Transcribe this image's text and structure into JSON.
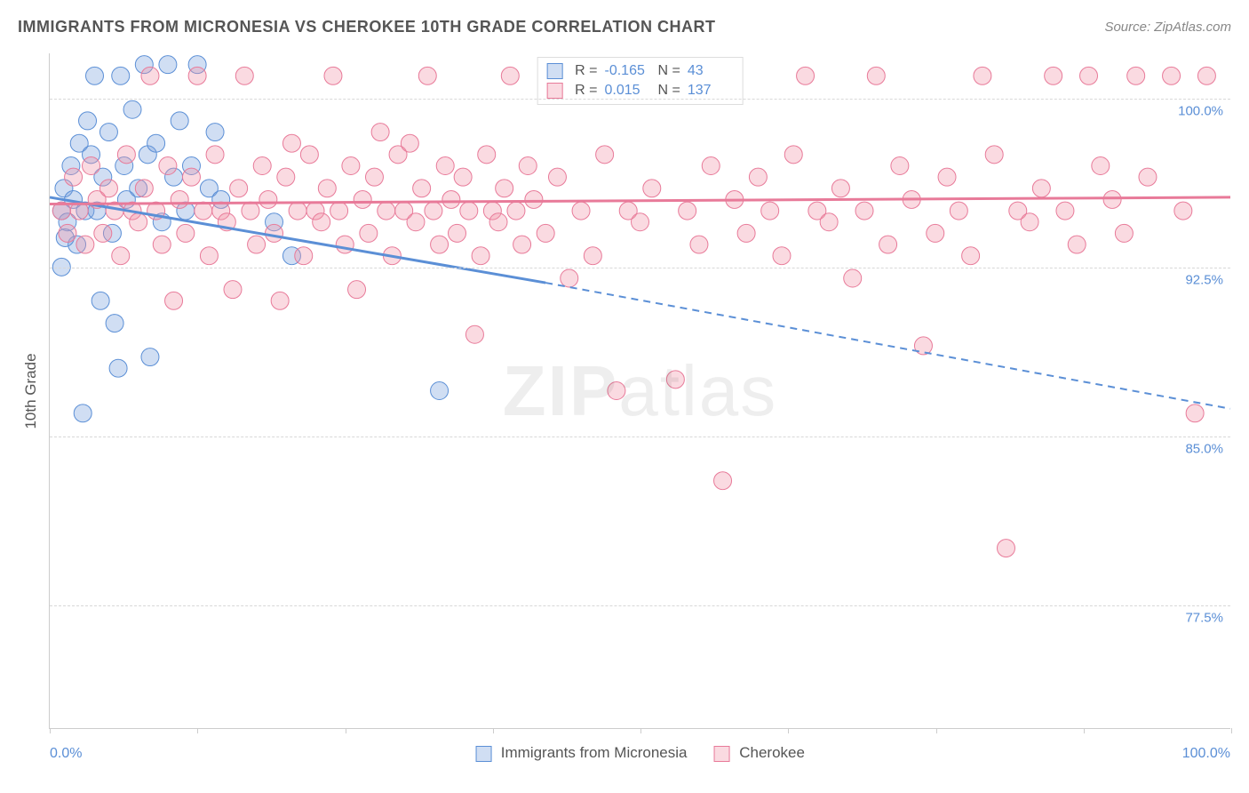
{
  "title": "IMMIGRANTS FROM MICRONESIA VS CHEROKEE 10TH GRADE CORRELATION CHART",
  "source": "Source: ZipAtlas.com",
  "y_axis_title": "10th Grade",
  "x_axis": {
    "min_label": "0.0%",
    "max_label": "100.0%",
    "min": 0,
    "max": 100,
    "tick_positions": [
      0,
      12.5,
      25,
      37.5,
      50,
      62.5,
      75,
      87.5,
      100
    ]
  },
  "y_axis": {
    "min": 72,
    "max": 102,
    "ticks": [
      {
        "value": 100.0,
        "label": "100.0%"
      },
      {
        "value": 92.5,
        "label": "92.5%"
      },
      {
        "value": 85.0,
        "label": "85.0%"
      },
      {
        "value": 77.5,
        "label": "77.5%"
      }
    ]
  },
  "watermark": {
    "bold": "ZIP",
    "light": "atlas"
  },
  "series": [
    {
      "name": "Immigrants from Micronesia",
      "color_fill": "rgba(120,160,220,0.35)",
      "color_stroke": "#5b8fd6",
      "marker_radius": 10,
      "R": "-0.165",
      "N": "43",
      "trend": {
        "solid_from": [
          0,
          95.6
        ],
        "solid_to": [
          42,
          91.8
        ],
        "dash_to": [
          100,
          86.2
        ],
        "stroke_width": 3
      },
      "points": [
        [
          1.0,
          95.0
        ],
        [
          1.2,
          96.0
        ],
        [
          1.5,
          94.5
        ],
        [
          1.8,
          97.0
        ],
        [
          2.0,
          95.5
        ],
        [
          2.3,
          93.5
        ],
        [
          2.5,
          98.0
        ],
        [
          3.0,
          95.0
        ],
        [
          3.2,
          99.0
        ],
        [
          3.5,
          97.5
        ],
        [
          3.8,
          101.0
        ],
        [
          4.0,
          95.0
        ],
        [
          4.3,
          91.0
        ],
        [
          4.5,
          96.5
        ],
        [
          5.0,
          98.5
        ],
        [
          5.3,
          94.0
        ],
        [
          5.5,
          90.0
        ],
        [
          6.0,
          101.0
        ],
        [
          6.3,
          97.0
        ],
        [
          6.5,
          95.5
        ],
        [
          7.0,
          99.5
        ],
        [
          7.5,
          96.0
        ],
        [
          8.0,
          101.5
        ],
        [
          8.3,
          97.5
        ],
        [
          8.5,
          88.5
        ],
        [
          9.0,
          98.0
        ],
        [
          9.5,
          94.5
        ],
        [
          10.0,
          101.5
        ],
        [
          10.5,
          96.5
        ],
        [
          11.0,
          99.0
        ],
        [
          11.5,
          95.0
        ],
        [
          12.0,
          97.0
        ],
        [
          12.5,
          101.5
        ],
        [
          13.5,
          96.0
        ],
        [
          14.0,
          98.5
        ],
        [
          14.5,
          95.5
        ],
        [
          2.8,
          86.0
        ],
        [
          5.8,
          88.0
        ],
        [
          19.0,
          94.5
        ],
        [
          20.5,
          93.0
        ],
        [
          33.0,
          87.0
        ],
        [
          1.0,
          92.5
        ],
        [
          1.3,
          93.8
        ]
      ]
    },
    {
      "name": "Cherokee",
      "color_fill": "rgba(240,150,170,0.35)",
      "color_stroke": "#e87a99",
      "marker_radius": 10,
      "R": "0.015",
      "N": "137",
      "trend": {
        "solid_from": [
          0,
          95.3
        ],
        "solid_to": [
          100,
          95.6
        ],
        "dash_to": null,
        "stroke_width": 3
      },
      "points": [
        [
          1.0,
          95.0
        ],
        [
          1.5,
          94.0
        ],
        [
          2.0,
          96.5
        ],
        [
          2.5,
          95.0
        ],
        [
          3.0,
          93.5
        ],
        [
          3.5,
          97.0
        ],
        [
          4.0,
          95.5
        ],
        [
          4.5,
          94.0
        ],
        [
          5.0,
          96.0
        ],
        [
          5.5,
          95.0
        ],
        [
          6.0,
          93.0
        ],
        [
          6.5,
          97.5
        ],
        [
          7.0,
          95.0
        ],
        [
          7.5,
          94.5
        ],
        [
          8.0,
          96.0
        ],
        [
          8.5,
          101.0
        ],
        [
          9.0,
          95.0
        ],
        [
          9.5,
          93.5
        ],
        [
          10.0,
          97.0
        ],
        [
          10.5,
          91.0
        ],
        [
          11.0,
          95.5
        ],
        [
          11.5,
          94.0
        ],
        [
          12.0,
          96.5
        ],
        [
          12.5,
          101.0
        ],
        [
          13.0,
          95.0
        ],
        [
          13.5,
          93.0
        ],
        [
          14.0,
          97.5
        ],
        [
          14.5,
          95.0
        ],
        [
          15.0,
          94.5
        ],
        [
          15.5,
          91.5
        ],
        [
          16.0,
          96.0
        ],
        [
          16.5,
          101.0
        ],
        [
          17.0,
          95.0
        ],
        [
          17.5,
          93.5
        ],
        [
          18.0,
          97.0
        ],
        [
          18.5,
          95.5
        ],
        [
          19.0,
          94.0
        ],
        [
          19.5,
          91.0
        ],
        [
          20.0,
          96.5
        ],
        [
          20.5,
          98.0
        ],
        [
          21.0,
          95.0
        ],
        [
          21.5,
          93.0
        ],
        [
          22.0,
          97.5
        ],
        [
          22.5,
          95.0
        ],
        [
          23.0,
          94.5
        ],
        [
          23.5,
          96.0
        ],
        [
          24.0,
          101.0
        ],
        [
          24.5,
          95.0
        ],
        [
          25.0,
          93.5
        ],
        [
          25.5,
          97.0
        ],
        [
          26.0,
          91.5
        ],
        [
          26.5,
          95.5
        ],
        [
          27.0,
          94.0
        ],
        [
          27.5,
          96.5
        ],
        [
          28.0,
          98.5
        ],
        [
          28.5,
          95.0
        ],
        [
          29.0,
          93.0
        ],
        [
          29.5,
          97.5
        ],
        [
          30.0,
          95.0
        ],
        [
          30.5,
          98.0
        ],
        [
          31.0,
          94.5
        ],
        [
          31.5,
          96.0
        ],
        [
          32.0,
          101.0
        ],
        [
          32.5,
          95.0
        ],
        [
          33.0,
          93.5
        ],
        [
          33.5,
          97.0
        ],
        [
          34.0,
          95.5
        ],
        [
          34.5,
          94.0
        ],
        [
          35.0,
          96.5
        ],
        [
          35.5,
          95.0
        ],
        [
          36.0,
          89.5
        ],
        [
          36.5,
          93.0
        ],
        [
          37.0,
          97.5
        ],
        [
          37.5,
          95.0
        ],
        [
          38.0,
          94.5
        ],
        [
          38.5,
          96.0
        ],
        [
          39.0,
          101.0
        ],
        [
          39.5,
          95.0
        ],
        [
          40.0,
          93.5
        ],
        [
          40.5,
          97.0
        ],
        [
          41.0,
          95.5
        ],
        [
          42.0,
          94.0
        ],
        [
          43.0,
          96.5
        ],
        [
          44.0,
          92.0
        ],
        [
          45.0,
          95.0
        ],
        [
          46.0,
          93.0
        ],
        [
          47.0,
          97.5
        ],
        [
          48.0,
          87.0
        ],
        [
          49.0,
          95.0
        ],
        [
          50.0,
          94.5
        ],
        [
          51.0,
          96.0
        ],
        [
          52.0,
          101.0
        ],
        [
          53.0,
          87.5
        ],
        [
          54.0,
          95.0
        ],
        [
          55.0,
          93.5
        ],
        [
          56.0,
          97.0
        ],
        [
          57.0,
          83.0
        ],
        [
          58.0,
          95.5
        ],
        [
          59.0,
          94.0
        ],
        [
          60.0,
          96.5
        ],
        [
          61.0,
          95.0
        ],
        [
          62.0,
          93.0
        ],
        [
          63.0,
          97.5
        ],
        [
          64.0,
          101.0
        ],
        [
          65.0,
          95.0
        ],
        [
          66.0,
          94.5
        ],
        [
          67.0,
          96.0
        ],
        [
          68.0,
          92.0
        ],
        [
          69.0,
          95.0
        ],
        [
          70.0,
          101.0
        ],
        [
          71.0,
          93.5
        ],
        [
          72.0,
          97.0
        ],
        [
          73.0,
          95.5
        ],
        [
          74.0,
          89.0
        ],
        [
          75.0,
          94.0
        ],
        [
          76.0,
          96.5
        ],
        [
          77.0,
          95.0
        ],
        [
          78.0,
          93.0
        ],
        [
          79.0,
          101.0
        ],
        [
          80.0,
          97.5
        ],
        [
          81.0,
          80.0
        ],
        [
          82.0,
          95.0
        ],
        [
          83.0,
          94.5
        ],
        [
          84.0,
          96.0
        ],
        [
          85.0,
          101.0
        ],
        [
          86.0,
          95.0
        ],
        [
          87.0,
          93.5
        ],
        [
          88.0,
          101.0
        ],
        [
          89.0,
          97.0
        ],
        [
          90.0,
          95.5
        ],
        [
          91.0,
          94.0
        ],
        [
          92.0,
          101.0
        ],
        [
          93.0,
          96.5
        ],
        [
          95.0,
          101.0
        ],
        [
          96.0,
          95.0
        ],
        [
          97.0,
          86.0
        ],
        [
          98.0,
          101.0
        ]
      ]
    }
  ],
  "legend_bottom": {
    "series1_label": "Immigrants from Micronesia",
    "series2_label": "Cherokee"
  },
  "colors": {
    "axis_label": "#5b8fd6",
    "grid": "#d8d8d8"
  }
}
